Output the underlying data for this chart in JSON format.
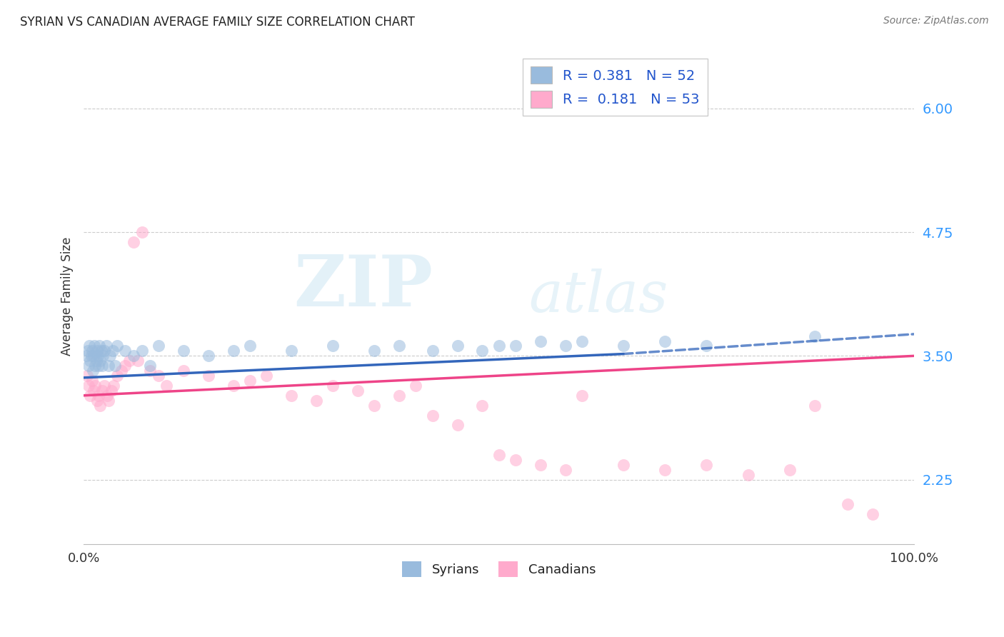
{
  "title": "SYRIAN VS CANADIAN AVERAGE FAMILY SIZE CORRELATION CHART",
  "source": "Source: ZipAtlas.com",
  "ylabel": "Average Family Size",
  "xlim": [
    0,
    1
  ],
  "ylim": [
    1.6,
    6.6
  ],
  "yticks": [
    2.25,
    3.5,
    4.75,
    6.0
  ],
  "ytick_labels": [
    "2.25",
    "3.50",
    "4.75",
    "6.00"
  ],
  "xtick_positions": [
    0,
    0.1,
    0.2,
    0.3,
    0.4,
    0.5,
    0.6,
    0.7,
    0.8,
    0.9,
    1.0
  ],
  "xtick_labels": [
    "0.0%",
    "",
    "",
    "",
    "",
    "",
    "",
    "",
    "",
    "",
    "100.0%"
  ],
  "watermark_line1": "ZIP",
  "watermark_line2": "atlas",
  "legend_r1": "R = 0.381",
  "legend_n1": "N = 52",
  "legend_r2": "R =  0.181",
  "legend_n2": "N = 53",
  "blue_color": "#99bbdd",
  "pink_color": "#ffaacc",
  "trend_blue": "#3366bb",
  "trend_pink": "#ee4488",
  "syrians_x": [
    0.003,
    0.005,
    0.006,
    0.007,
    0.008,
    0.009,
    0.01,
    0.011,
    0.012,
    0.013,
    0.014,
    0.015,
    0.016,
    0.017,
    0.018,
    0.019,
    0.02,
    0.021,
    0.022,
    0.023,
    0.025,
    0.027,
    0.03,
    0.032,
    0.035,
    0.038,
    0.04,
    0.05,
    0.06,
    0.07,
    0.08,
    0.09,
    0.12,
    0.15,
    0.18,
    0.2,
    0.25,
    0.3,
    0.35,
    0.38,
    0.42,
    0.45,
    0.48,
    0.5,
    0.52,
    0.55,
    0.58,
    0.6,
    0.65,
    0.7,
    0.75,
    0.88
  ],
  "syrians_y": [
    3.5,
    3.55,
    3.4,
    3.6,
    3.45,
    3.5,
    3.55,
    3.35,
    3.5,
    3.6,
    3.4,
    3.45,
    3.55,
    3.5,
    3.4,
    3.6,
    3.45,
    3.55,
    3.4,
    3.5,
    3.55,
    3.6,
    3.4,
    3.5,
    3.55,
    3.4,
    3.6,
    3.55,
    3.5,
    3.55,
    3.4,
    3.6,
    3.55,
    3.5,
    3.55,
    3.6,
    3.55,
    3.6,
    3.55,
    3.6,
    3.55,
    3.6,
    3.55,
    3.6,
    3.6,
    3.65,
    3.6,
    3.65,
    3.6,
    3.65,
    3.6,
    3.7
  ],
  "canadians_x": [
    0.004,
    0.006,
    0.008,
    0.01,
    0.012,
    0.014,
    0.016,
    0.018,
    0.02,
    0.022,
    0.025,
    0.028,
    0.03,
    0.033,
    0.036,
    0.04,
    0.045,
    0.05,
    0.055,
    0.06,
    0.065,
    0.07,
    0.08,
    0.09,
    0.1,
    0.12,
    0.15,
    0.18,
    0.2,
    0.22,
    0.25,
    0.28,
    0.3,
    0.33,
    0.35,
    0.38,
    0.4,
    0.42,
    0.45,
    0.48,
    0.5,
    0.52,
    0.55,
    0.58,
    0.6,
    0.65,
    0.7,
    0.75,
    0.8,
    0.85,
    0.88,
    0.92,
    0.95
  ],
  "canadians_y": [
    3.3,
    3.2,
    3.1,
    3.25,
    3.15,
    3.2,
    3.05,
    3.1,
    3.0,
    3.15,
    3.2,
    3.1,
    3.05,
    3.15,
    3.2,
    3.3,
    3.35,
    3.4,
    3.45,
    4.65,
    3.45,
    4.75,
    3.35,
    3.3,
    3.2,
    3.35,
    3.3,
    3.2,
    3.25,
    3.3,
    3.1,
    3.05,
    3.2,
    3.15,
    3.0,
    3.1,
    3.2,
    2.9,
    2.8,
    3.0,
    2.5,
    2.45,
    2.4,
    2.35,
    3.1,
    2.4,
    2.35,
    2.4,
    2.3,
    2.35,
    3.0,
    2.0,
    1.9
  ],
  "syrian_trend_x0": 0.0,
  "syrian_trend_x1": 0.65,
  "syrian_trend_y0": 3.28,
  "syrian_trend_y1": 3.52,
  "syrian_trend_ext_x1": 1.0,
  "syrian_trend_ext_y1": 3.72,
  "canadian_trend_x0": 0.0,
  "canadian_trend_x1": 1.0,
  "canadian_trend_y0": 3.1,
  "canadian_trend_y1": 3.5
}
